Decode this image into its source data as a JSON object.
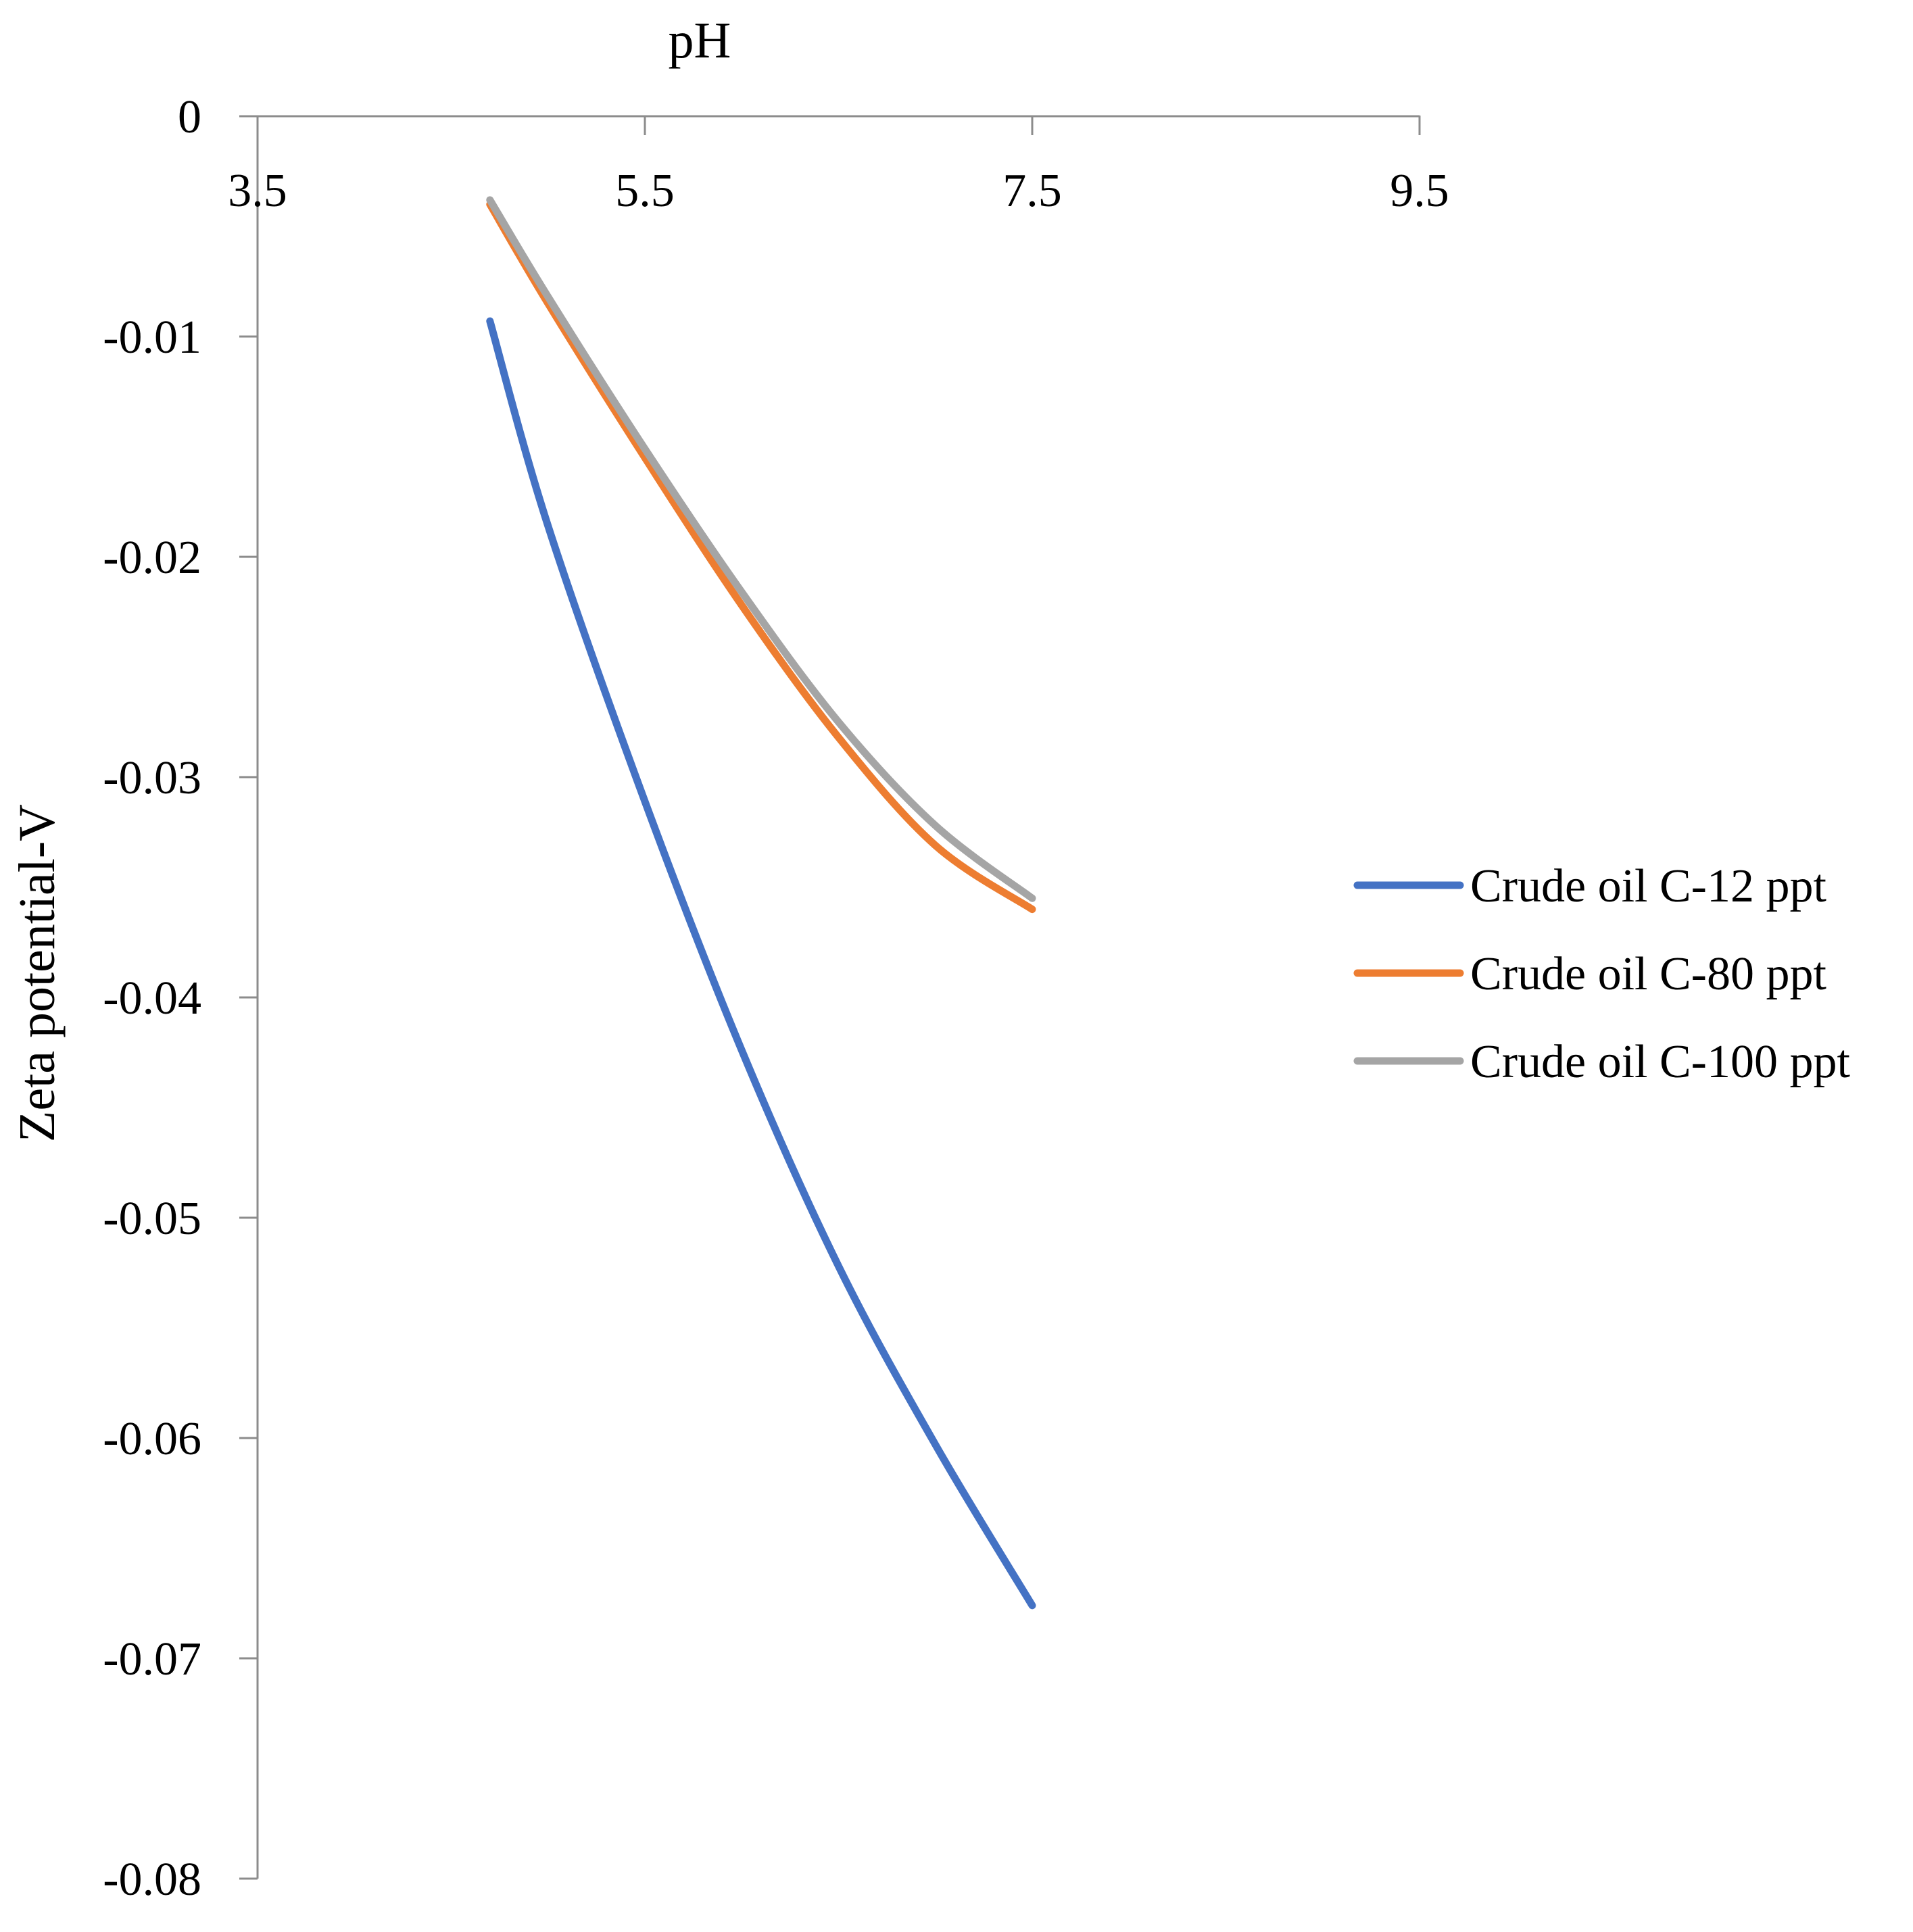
{
  "chart_data": {
    "type": "line",
    "title": "",
    "xlabel": "pH",
    "ylabel": "Zeta potential-V",
    "xlim": [
      3.5,
      9.5
    ],
    "ylim": [
      -0.08,
      0
    ],
    "x_ticks": [
      "3.5",
      "5.5",
      "7.5",
      "9.5"
    ],
    "y_ticks": [
      "0",
      "-0.01",
      "-0.02",
      "-0.03",
      "-0.04",
      "-0.05",
      "-0.06",
      "-0.07",
      "-0.08"
    ],
    "x_tick_values": [
      3.5,
      5.5,
      7.5,
      9.5
    ],
    "y_tick_values": [
      0,
      -0.01,
      -0.02,
      -0.03,
      -0.04,
      -0.05,
      -0.06,
      -0.07,
      -0.08
    ],
    "legend_position": "right",
    "x_axis_position": "top",
    "grid": false,
    "series": [
      {
        "name": "Crude oil C-12 ppt",
        "color": "#4472C4",
        "x": [
          4.7,
          5.0,
          5.5,
          6.0,
          6.5,
          7.0,
          7.5
        ],
        "y": [
          -0.0093,
          -0.0186,
          -0.0311,
          -0.0424,
          -0.0522,
          -0.0603,
          -0.0676
        ]
      },
      {
        "name": "Crude oil C-80 ppt",
        "color": "#ED7D31",
        "x": [
          4.7,
          5.0,
          5.5,
          6.0,
          6.5,
          7.0,
          7.5
        ],
        "y": [
          -0.004,
          -0.0085,
          -0.0155,
          -0.0222,
          -0.0282,
          -0.0331,
          -0.036
        ]
      },
      {
        "name": "Crude oil C-100 ppt",
        "color": "#A5A5A5",
        "x": [
          4.7,
          5.0,
          5.5,
          6.0,
          6.5,
          7.0,
          7.5
        ],
        "y": [
          -0.0038,
          -0.0082,
          -0.0151,
          -0.0216,
          -0.0275,
          -0.0322,
          -0.0355
        ]
      }
    ]
  }
}
